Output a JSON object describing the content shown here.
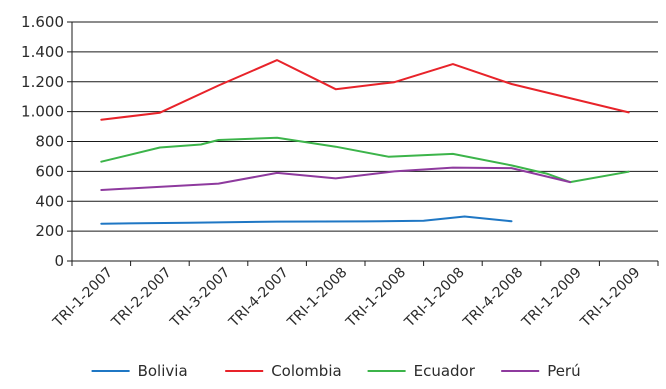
{
  "chart_data": {
    "type": "line",
    "title": "",
    "xlabel": "",
    "ylabel": "",
    "categories": [
      "TRI-1-2007",
      "TRI-2-2007",
      "TRI-3-2007",
      "TRI-4-2007",
      "TRI-1-2008",
      "TRI-1-2008",
      "TRI-1-2008",
      "TRI-4-2008",
      "TRI-1-2009",
      "TRI-1-2009"
    ],
    "ylim": [
      0,
      1600
    ],
    "yticks": [
      0,
      200,
      400,
      600,
      800,
      1000,
      1200,
      1400,
      1600
    ],
    "ytick_labels": [
      "0",
      "200",
      "400",
      "600",
      "800",
      "1.000",
      "1.200",
      "1.400",
      "1.600"
    ],
    "grid": true,
    "legend_position": "bottom",
    "series": [
      {
        "name": "Bolivia",
        "color": "#1f77c4",
        "points": [
          [
            0,
            250
          ],
          [
            1.5,
            256
          ],
          [
            3,
            264
          ],
          [
            4.5,
            265
          ],
          [
            5.5,
            270
          ],
          [
            6.2,
            298
          ],
          [
            7,
            266
          ]
        ]
      },
      {
        "name": "Colombia",
        "color": "#e8232a",
        "points": [
          [
            0,
            945
          ],
          [
            1,
            993
          ],
          [
            2,
            1175
          ],
          [
            3,
            1345
          ],
          [
            4,
            1150
          ],
          [
            5,
            1197
          ],
          [
            6,
            1318
          ],
          [
            7,
            1185
          ],
          [
            9,
            995
          ]
        ]
      },
      {
        "name": "Ecuador",
        "color": "#3cb44a",
        "points": [
          [
            0,
            665
          ],
          [
            1,
            760
          ],
          [
            1.7,
            780
          ],
          [
            2,
            810
          ],
          [
            3,
            825
          ],
          [
            4,
            765
          ],
          [
            4.9,
            698
          ],
          [
            6,
            717
          ],
          [
            7,
            640
          ],
          [
            7.6,
            585
          ],
          [
            8,
            528
          ],
          [
            9,
            598
          ]
        ]
      },
      {
        "name": "Perú",
        "color": "#8e3a9e",
        "points": [
          [
            0,
            475
          ],
          [
            2,
            518
          ],
          [
            3,
            590
          ],
          [
            4,
            553
          ],
          [
            5,
            600
          ],
          [
            6,
            625
          ],
          [
            7,
            622
          ],
          [
            8,
            528
          ]
        ]
      }
    ]
  }
}
